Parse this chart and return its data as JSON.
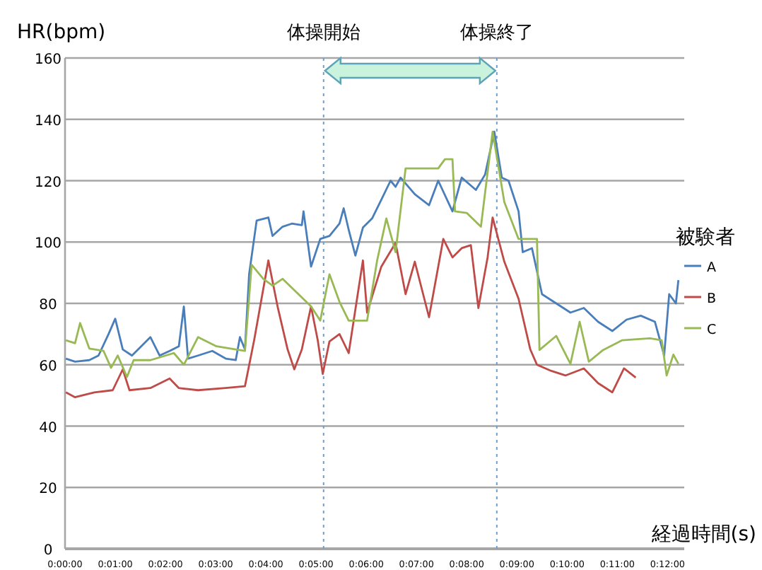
{
  "chart_data": {
    "type": "line",
    "xlabel": "経過時間(s)",
    "ylabel": "HR(bpm)",
    "legend_title": "被験者",
    "xlim": [
      0,
      740
    ],
    "ylim": [
      0,
      160
    ],
    "xticks": [
      {
        "value": 0,
        "label": "0:00:00"
      },
      {
        "value": 60,
        "label": "0:01:00"
      },
      {
        "value": 120,
        "label": "0:02:00"
      },
      {
        "value": 180,
        "label": "0:03:00"
      },
      {
        "value": 240,
        "label": "0:04:00"
      },
      {
        "value": 300,
        "label": "0:05:00"
      },
      {
        "value": 360,
        "label": "0:06:00"
      },
      {
        "value": 420,
        "label": "0:07:00"
      },
      {
        "value": 480,
        "label": "0:08:00"
      },
      {
        "value": 540,
        "label": "0:09:00"
      },
      {
        "value": 600,
        "label": "0:10:00"
      },
      {
        "value": 660,
        "label": "0:11:00"
      },
      {
        "value": 720,
        "label": "0:12:00"
      }
    ],
    "yticks": [
      0,
      20,
      40,
      60,
      80,
      100,
      120,
      140,
      160
    ],
    "grid": "y",
    "legend": "right",
    "marker": "none",
    "line_style": "solid",
    "ref_lines": [
      {
        "axis": "x",
        "value": 309,
        "label": "体操開始",
        "color": "#6f9fd0",
        "line_style": "dotted"
      },
      {
        "axis": "x",
        "value": 516,
        "label": "体操終了",
        "color": "#6f9fd0",
        "line_style": "dotted"
      }
    ],
    "series": [
      {
        "name": "A",
        "color": "#4a7ebb",
        "x": [
          1,
          12,
          29,
          40,
          52,
          60,
          69,
          80,
          91,
          102,
          113,
          125,
          136,
          142,
          147,
          159,
          176,
          192,
          204,
          209,
          215,
          220,
          229,
          243,
          248,
          260,
          271,
          283,
          285,
          294,
          305,
          316,
          328,
          333,
          339,
          347,
          356,
          367,
          378,
          389,
          395,
          401,
          418,
          435,
          446,
          463,
          474,
          491,
          502,
          513,
          522,
          530,
          542,
          547,
          558,
          570,
          587,
          604,
          620,
          637,
          654,
          671,
          688,
          705,
          716,
          722,
          730,
          733
        ],
        "values": [
          62,
          61,
          61.5,
          63,
          70,
          75,
          65,
          63,
          66,
          69,
          63,
          64.5,
          66,
          79,
          62,
          63,
          64.5,
          62,
          61.5,
          69,
          65,
          89.5,
          107,
          108,
          102,
          105,
          106,
          105.5,
          110,
          92,
          101,
          102,
          106,
          111,
          104,
          95.6,
          104.7,
          107.7,
          113.8,
          120,
          118,
          121,
          115.6,
          112,
          120,
          110,
          121,
          117,
          122,
          136,
          121,
          120,
          110,
          96.7,
          98,
          83,
          80,
          77,
          78.5,
          74,
          71,
          74.7,
          76,
          74,
          63,
          83,
          80,
          87.6
        ]
      },
      {
        "name": "B",
        "color": "#be4b48",
        "x": [
          1,
          12,
          35,
          57,
          69,
          77,
          102,
          125,
          136,
          159,
          192,
          215,
          226,
          243,
          254,
          266,
          274,
          283,
          294,
          302,
          308,
          316,
          328,
          339,
          356,
          361,
          378,
          395,
          407,
          418,
          435,
          452,
          463,
          474,
          485,
          494,
          505,
          511,
          525,
          542,
          556,
          564,
          581,
          598,
          620,
          637,
          654,
          668,
          682
        ],
        "values": [
          51,
          49.4,
          51,
          51.7,
          58.5,
          51.7,
          52.4,
          55.5,
          52.4,
          51.7,
          52.4,
          53,
          68,
          94,
          79,
          65,
          58.5,
          65,
          79,
          68,
          57,
          67.6,
          70,
          63.8,
          94,
          77,
          92,
          99.7,
          83,
          93.6,
          75.5,
          101,
          95,
          98,
          99,
          78.5,
          95,
          108,
          93.6,
          81.5,
          65,
          60,
          58,
          56.5,
          58.8,
          54,
          51,
          58.8,
          55.8
        ]
      },
      {
        "name": "C",
        "color": "#98b954",
        "x": [
          1,
          12,
          18,
          29,
          46,
          55,
          63,
          74,
          82,
          102,
          130,
          142,
          159,
          181,
          204,
          215,
          223,
          237,
          248,
          260,
          277,
          294,
          305,
          316,
          328,
          339,
          361,
          373,
          384,
          395,
          407,
          446,
          454,
          463,
          466,
          480,
          497,
          511,
          525,
          542,
          564,
          567,
          587,
          604,
          615,
          626,
          643,
          666,
          699,
          713,
          719,
          727,
          733
        ],
        "values": [
          68,
          67,
          73.6,
          65.3,
          64.5,
          59,
          63,
          56,
          61.5,
          61.5,
          63.8,
          60,
          69,
          66,
          65,
          64.5,
          92.6,
          88,
          85.8,
          88,
          83.5,
          79,
          74.4,
          89.5,
          80.5,
          74.4,
          74.4,
          94,
          107.7,
          96.7,
          124,
          124,
          127,
          127,
          110,
          109.5,
          105,
          136,
          113,
          101,
          101,
          64.8,
          69.4,
          60.3,
          74,
          61,
          64.8,
          68,
          68.6,
          68,
          56.5,
          63.3,
          60.3
        ]
      }
    ]
  }
}
